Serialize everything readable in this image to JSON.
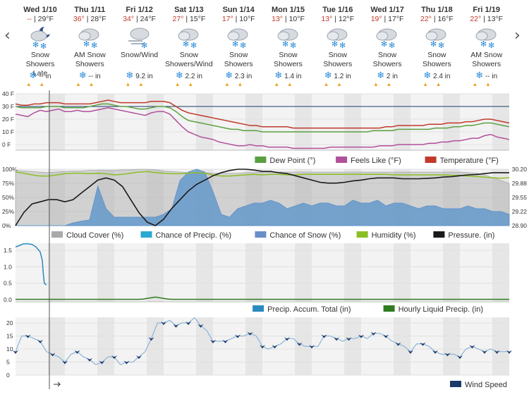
{
  "nav": {
    "prev": "‹",
    "next": "›"
  },
  "days": [
    {
      "date": "Wed 1/10",
      "hi": "--",
      "lo": "29°F",
      "icon": "night-snow-icon",
      "cond": [
        "Snow Showers",
        "Late"
      ],
      "snow": "-- in"
    },
    {
      "date": "Thu 1/11",
      "hi": "36°",
      "lo": "28°F",
      "icon": "snow-icon",
      "cond": [
        "AM Snow",
        "Showers"
      ],
      "snow": "-- in"
    },
    {
      "date": "Fri 1/12",
      "hi": "34°",
      "lo": "24°F",
      "icon": "snow-wind-icon",
      "cond": [
        "Snow/Wind",
        ""
      ],
      "snow": "9.2 in"
    },
    {
      "date": "Sat 1/13",
      "hi": "27°",
      "lo": "15°F",
      "icon": "snow-icon",
      "cond": [
        "Snow",
        "Showers/Wind"
      ],
      "snow": "2.2 in"
    },
    {
      "date": "Sun 1/14",
      "hi": "17°",
      "lo": "10°F",
      "icon": "snow-icon",
      "cond": [
        "Snow Showers",
        ""
      ],
      "snow": "2.3 in"
    },
    {
      "date": "Mon 1/15",
      "hi": "13°",
      "lo": "10°F",
      "icon": "snow-icon",
      "cond": [
        "Snow Showers",
        ""
      ],
      "snow": "1.4 in"
    },
    {
      "date": "Tue 1/16",
      "hi": "13°",
      "lo": "12°F",
      "icon": "snow-icon",
      "cond": [
        "Snow Showers",
        ""
      ],
      "snow": "1.2 in"
    },
    {
      "date": "Wed 1/17",
      "hi": "19°",
      "lo": "17°F",
      "icon": "snow-icon",
      "cond": [
        "Snow Showers",
        ""
      ],
      "snow": "2 in"
    },
    {
      "date": "Thu 1/18",
      "hi": "22°",
      "lo": "16°F",
      "icon": "snow-icon",
      "cond": [
        "Snow Showers",
        ""
      ],
      "snow": "2.4 in"
    },
    {
      "date": "Fri 1/19",
      "hi": "22°",
      "lo": "13°F",
      "icon": "snow-icon",
      "cond": [
        "AM Snow",
        "Showers"
      ],
      "snow": "-- in"
    }
  ],
  "chart_data": [
    {
      "type": "line",
      "ylim": [
        -5,
        40
      ],
      "yticks": [
        "40 F",
        "30 F",
        "20 F",
        "10 F",
        "0 F"
      ],
      "x": [
        0,
        3,
        6,
        9,
        12,
        15,
        18,
        21,
        24,
        27,
        30,
        33,
        36,
        39,
        42,
        45,
        48,
        51,
        54,
        57,
        60,
        63,
        66,
        69,
        72,
        75,
        78,
        81,
        84,
        87,
        90,
        93,
        96,
        99,
        102,
        105,
        108,
        111,
        114,
        117,
        120,
        123,
        126,
        129,
        132,
        135,
        138,
        141,
        144,
        147,
        150,
        153,
        156,
        159,
        162,
        165,
        168,
        171,
        174,
        177,
        180,
        183,
        186,
        189,
        192,
        195,
        198,
        201,
        204,
        207,
        210,
        213,
        216,
        219,
        222,
        225,
        228,
        231,
        234,
        237,
        240
      ],
      "series": [
        {
          "name": "Temperature (°F)",
          "color": "#c0392b",
          "values": [
            32,
            31,
            31,
            32,
            32,
            33,
            33,
            33,
            32,
            32,
            32,
            32,
            32,
            33,
            34,
            35,
            34,
            33,
            33,
            33,
            33,
            33,
            34,
            34,
            34,
            33,
            30,
            27,
            25,
            24,
            23,
            22,
            21,
            20,
            19,
            18,
            17,
            16,
            15,
            15,
            14,
            14,
            14,
            14,
            14,
            13,
            13,
            13,
            13,
            13,
            13,
            13,
            13,
            13,
            13,
            13,
            13,
            13,
            13,
            13,
            14,
            14,
            15,
            15,
            15,
            15,
            15,
            16,
            16,
            16,
            17,
            17,
            17,
            18,
            18,
            19,
            20,
            20,
            19,
            18,
            17
          ]
        },
        {
          "name": "Dew Point (°)",
          "color": "#5aa040",
          "values": [
            30,
            29,
            29,
            29,
            29,
            30,
            30,
            30,
            29,
            29,
            29,
            29,
            30,
            31,
            32,
            32,
            31,
            30,
            30,
            29,
            28,
            28,
            29,
            30,
            30,
            29,
            26,
            22,
            19,
            18,
            17,
            16,
            15,
            14,
            13,
            12,
            12,
            11,
            11,
            11,
            10,
            10,
            10,
            10,
            10,
            10,
            10,
            10,
            10,
            10,
            10,
            10,
            10,
            10,
            10,
            10,
            10,
            10,
            11,
            11,
            11,
            11,
            12,
            12,
            12,
            12,
            12,
            12,
            13,
            13,
            13,
            14,
            14,
            15,
            15,
            16,
            17,
            17,
            16,
            15,
            14
          ]
        },
        {
          "name": "Feels Like (°F)",
          "color": "#b0509a",
          "values": [
            24,
            23,
            22,
            25,
            27,
            26,
            27,
            28,
            26,
            26,
            27,
            26,
            26,
            27,
            28,
            29,
            28,
            27,
            26,
            25,
            24,
            23,
            25,
            26,
            26,
            24,
            19,
            14,
            10,
            8,
            6,
            5,
            4,
            2,
            1,
            0,
            -1,
            -1,
            0,
            -1,
            -1,
            -2,
            -2,
            -2,
            -2,
            -3,
            -3,
            -3,
            -3,
            -3,
            -3,
            -2,
            -2,
            -2,
            -2,
            -2,
            -2,
            -2,
            -2,
            -1,
            -1,
            -1,
            0,
            0,
            0,
            0,
            0,
            1,
            1,
            2,
            2,
            3,
            3,
            4,
            5,
            5,
            7,
            8,
            6,
            5,
            4
          ]
        }
      ],
      "marker_value": 30,
      "legend": [
        "Dew Point (°)",
        "Feels Like (°F)",
        "Temperature (°F)"
      ]
    },
    {
      "type": "area",
      "ylim_left": [
        0,
        100
      ],
      "yticks_left": [
        "100%",
        "75%",
        "50%",
        "25%",
        "0%"
      ],
      "ylim_right": [
        28.9,
        30.2
      ],
      "yticks_right": [
        "30.20",
        "29.88",
        "29.55",
        "29.22",
        "28.90"
      ],
      "x": [
        0,
        4,
        8,
        12,
        16,
        20,
        24,
        28,
        32,
        36,
        40,
        44,
        48,
        52,
        56,
        60,
        64,
        68,
        72,
        76,
        80,
        84,
        88,
        92,
        96,
        100,
        104,
        108,
        112,
        116,
        120,
        124,
        128,
        132,
        136,
        140,
        144,
        148,
        152,
        156,
        160,
        164,
        168,
        172,
        176,
        180,
        184,
        188,
        192,
        196,
        200,
        204,
        208,
        212,
        216,
        220,
        224,
        228,
        232,
        236,
        240
      ],
      "series": [
        {
          "name": "Cloud Cover (%)",
          "color": "#a9a9a9",
          "values": [
            98,
            97,
            96,
            95,
            94,
            95,
            96,
            97,
            97,
            98,
            98,
            98,
            98,
            99,
            99,
            100,
            100,
            99,
            97,
            96,
            95,
            94,
            94,
            94,
            93,
            93,
            93,
            93,
            94,
            94,
            95,
            95,
            95,
            95,
            95,
            95,
            95,
            95,
            95,
            95,
            95,
            95,
            95,
            95,
            95,
            95,
            95,
            95,
            95,
            95,
            95,
            95,
            95,
            95,
            95,
            94,
            93,
            90,
            85,
            80,
            75
          ]
        },
        {
          "name": "Chance of Precip. (%)",
          "color": "#2aa8d0",
          "values": [
            0,
            0,
            0,
            0,
            0,
            0,
            0,
            5,
            8,
            10,
            70,
            30,
            15,
            15,
            15,
            15,
            15,
            15,
            20,
            30,
            80,
            95,
            100,
            95,
            60,
            20,
            15,
            30,
            35,
            40,
            40,
            45,
            40,
            30,
            35,
            40,
            35,
            40,
            40,
            35,
            35,
            45,
            40,
            40,
            45,
            35,
            40,
            40,
            35,
            30,
            35,
            35,
            30,
            30,
            30,
            35,
            30,
            30,
            25,
            25,
            20
          ]
        },
        {
          "name": "Chance of Snow (%)",
          "color": "#6a8fc8",
          "values": [
            0,
            0,
            0,
            0,
            0,
            0,
            0,
            5,
            8,
            10,
            70,
            30,
            15,
            15,
            15,
            15,
            15,
            15,
            20,
            30,
            80,
            95,
            100,
            95,
            60,
            20,
            15,
            30,
            35,
            40,
            40,
            45,
            40,
            30,
            35,
            40,
            35,
            40,
            40,
            35,
            35,
            45,
            40,
            40,
            45,
            35,
            40,
            40,
            35,
            30,
            35,
            35,
            30,
            30,
            30,
            35,
            30,
            30,
            25,
            25,
            20
          ]
        },
        {
          "name": "Humidity (%)",
          "color": "#8cbf26",
          "values": [
            95,
            93,
            90,
            88,
            88,
            90,
            92,
            93,
            93,
            92,
            93,
            92,
            90,
            91,
            93,
            95,
            96,
            94,
            93,
            92,
            92,
            93,
            94,
            93,
            90,
            88,
            88,
            89,
            90,
            91,
            90,
            91,
            91,
            90,
            90,
            91,
            91,
            91,
            91,
            91,
            91,
            91,
            91,
            91,
            91,
            91,
            90,
            90,
            90,
            90,
            90,
            90,
            90,
            89,
            89,
            88,
            87,
            86,
            85,
            84,
            85
          ]
        },
        {
          "name": "Pressure. (in)",
          "color": "#1a1a1a",
          "values": [
            28.9,
            29.2,
            29.4,
            29.45,
            29.5,
            29.5,
            29.45,
            29.5,
            29.65,
            29.8,
            29.95,
            30.0,
            29.95,
            29.8,
            29.5,
            29.2,
            28.98,
            28.9,
            29.05,
            29.3,
            29.5,
            29.7,
            29.85,
            29.95,
            30.05,
            30.12,
            30.17,
            30.2,
            30.2,
            30.18,
            30.15,
            30.15,
            30.12,
            30.1,
            30.05,
            30.0,
            29.95,
            29.9,
            29.88,
            29.88,
            29.9,
            29.93,
            29.95,
            29.98,
            30.0,
            30.0,
            30.0,
            29.98,
            29.98,
            29.98,
            29.99,
            30.0,
            30.02,
            30.03,
            30.05,
            30.07,
            30.08,
            30.1,
            30.12,
            30.12,
            30.12
          ]
        }
      ],
      "legend": [
        "Cloud Cover (%)",
        "Chance of Precip. (%)",
        "Chance of Snow (%)",
        "Humidity (%)",
        "Pressure. (in)"
      ]
    },
    {
      "type": "line",
      "ylim": [
        0,
        1.75
      ],
      "yticks": [
        "1.5",
        "1.0",
        "0.5",
        "0.0"
      ],
      "series": [
        {
          "name": "Precip. Accum. Total (in)",
          "color": "#2a8ac0",
          "x": [
            0,
            2,
            4,
            6,
            8,
            10,
            12,
            13,
            13.5,
            14,
            15
          ],
          "values": [
            1.6,
            1.65,
            1.7,
            1.7,
            1.68,
            1.6,
            1.45,
            1.2,
            0.8,
            0.5,
            0.45
          ]
        },
        {
          "name": "Hourly Liquid Precip. (in)",
          "color": "#2e7d1e",
          "x": [
            0,
            40,
            60,
            62,
            64,
            66,
            68,
            70,
            72,
            74,
            76,
            120,
            180,
            240
          ],
          "values": [
            0.01,
            0.01,
            0.01,
            0.02,
            0.04,
            0.06,
            0.08,
            0.06,
            0.04,
            0.02,
            0.01,
            0.01,
            0.01,
            0.01
          ]
        }
      ],
      "legend": [
        "Precip. Accum. Total (in)",
        "Hourly Liquid Precip. (in)"
      ]
    },
    {
      "type": "line",
      "ylim": [
        0,
        22
      ],
      "yticks": [
        "20",
        "15",
        "10",
        "5",
        "0"
      ],
      "x": [
        0,
        3,
        6,
        9,
        12,
        15,
        18,
        21,
        24,
        27,
        30,
        33,
        36,
        39,
        42,
        45,
        48,
        51,
        54,
        57,
        60,
        63,
        66,
        69,
        72,
        75,
        78,
        81,
        84,
        87,
        90,
        93,
        96,
        99,
        102,
        105,
        108,
        111,
        114,
        117,
        120,
        123,
        126,
        129,
        132,
        135,
        138,
        141,
        144,
        147,
        150,
        153,
        156,
        159,
        162,
        165,
        168,
        171,
        174,
        177,
        180,
        183,
        186,
        189,
        192,
        195,
        198,
        201,
        204,
        207,
        210,
        213,
        216,
        219,
        222,
        225,
        228,
        231,
        234,
        237,
        240
      ],
      "series": [
        {
          "name": "Wind Speed",
          "color": "#1a3a6a",
          "line_color": "#8ab4d8",
          "values": [
            9,
            15,
            15,
            14,
            13,
            9,
            8,
            7,
            5,
            8,
            9,
            7,
            6,
            4,
            5,
            7,
            7,
            4,
            5,
            5,
            7,
            9,
            14,
            20,
            20,
            21,
            19,
            20,
            20,
            22,
            19,
            17,
            13,
            13,
            13,
            14,
            15,
            15,
            16,
            15,
            11,
            10,
            11,
            12,
            14,
            14,
            12,
            11,
            11,
            11,
            15,
            15,
            14,
            13,
            14,
            14,
            15,
            14,
            16,
            16,
            15,
            13,
            12,
            11,
            9,
            12,
            12,
            11,
            9,
            8,
            8,
            8,
            7,
            10,
            11,
            10,
            9,
            10,
            9,
            9,
            9
          ]
        }
      ],
      "legend": [
        "Wind Speed"
      ]
    }
  ]
}
